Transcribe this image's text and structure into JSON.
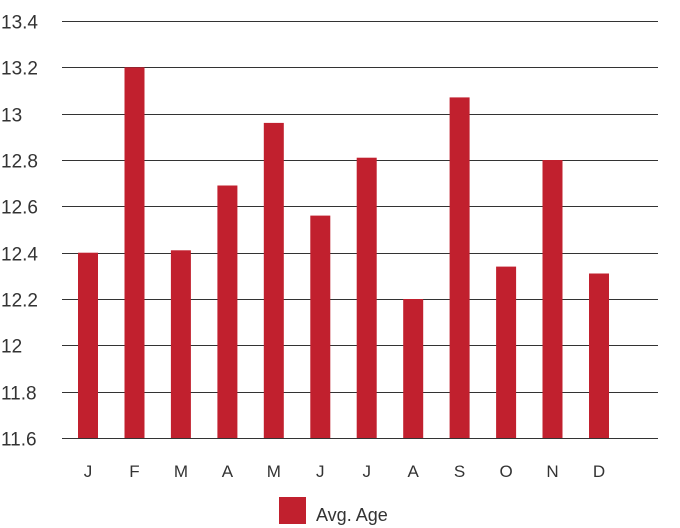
{
  "chart_data": {
    "type": "bar",
    "categories": [
      "J",
      "F",
      "M",
      "A",
      "M",
      "J",
      "J",
      "A",
      "S",
      "O",
      "N",
      "D"
    ],
    "series": [
      {
        "name": "Avg. Age",
        "color": "#c1202e",
        "values": [
          12.4,
          13.2,
          12.41,
          12.69,
          12.96,
          12.56,
          12.81,
          12.2,
          13.07,
          12.34,
          12.8,
          12.31
        ]
      }
    ],
    "ylim": [
      11.6,
      13.4
    ],
    "yticks": [
      11.6,
      11.8,
      12,
      12.2,
      12.4,
      12.6,
      12.8,
      13,
      13.2,
      13.4
    ],
    "ytick_labels": [
      "11.6",
      "11.8",
      "12",
      "12.2",
      "12.4",
      "12.6",
      "12.8",
      "13",
      "13.2",
      "13.4"
    ],
    "grid": true,
    "legend_position": "bottom",
    "title": "",
    "xlabel": "",
    "ylabel": ""
  }
}
